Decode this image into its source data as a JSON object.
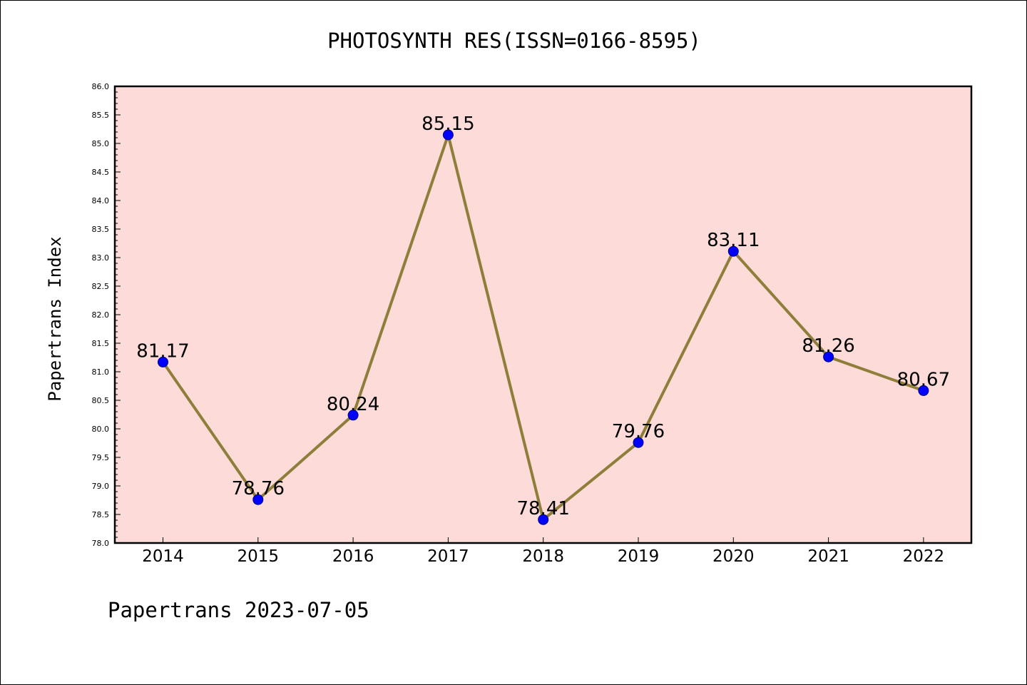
{
  "chart_data": {
    "type": "line",
    "title": "PHOTOSYNTH RES(ISSN=0166-8595)",
    "xlabel": "",
    "ylabel": "Papertrans Index",
    "footer": "Papertrans 2023-07-05",
    "categories": [
      "2014",
      "2015",
      "2016",
      "2017",
      "2018",
      "2019",
      "2020",
      "2021",
      "2022"
    ],
    "series": [
      {
        "values": [
          81.17,
          78.76,
          80.24,
          85.15,
          78.41,
          79.76,
          83.11,
          81.26,
          80.67
        ]
      }
    ],
    "data_labels": [
      "81.17",
      "78.76",
      "80.24",
      "85.15",
      "78.41",
      "79.76",
      "83.11",
      "81.26",
      "80.67"
    ],
    "ylim": [
      78.0,
      86.0
    ],
    "y_ticks": [
      "78.0",
      "78.5",
      "79.0",
      "79.5",
      "80.0",
      "80.5",
      "81.0",
      "81.5",
      "82.0",
      "82.5",
      "83.0",
      "83.5",
      "84.0",
      "84.5",
      "85.0",
      "85.5",
      "86.0"
    ],
    "grid": false,
    "legend": "none",
    "colors": {
      "plot_background": "#fddbd9",
      "line": "#8f7e3a",
      "marker_fill": "#0000ff",
      "marker_edge": "#000080",
      "axis": "#000000"
    }
  }
}
